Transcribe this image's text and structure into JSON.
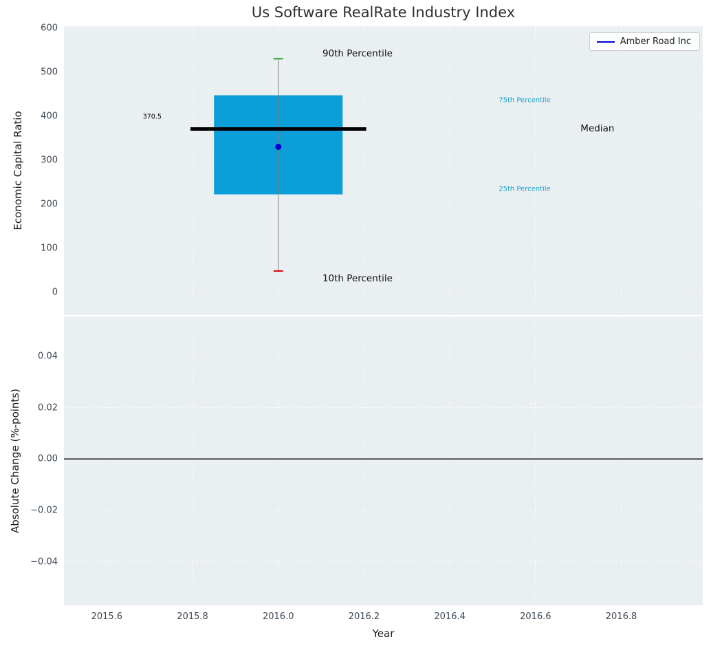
{
  "figure": {
    "background": "#ffffff",
    "axes_background": "#eaeff1",
    "grid_color": "#ffffff"
  },
  "legend": {
    "label": "Amber Road Inc",
    "line_color": "#0000cc"
  },
  "chart_data": [
    {
      "type": "boxplot",
      "title": "Us Software RealRate Industry Index",
      "ylabel": "Economic Capital Ratio",
      "xlim": [
        2015.5,
        2016.99
      ],
      "ylim": [
        -52,
        604
      ],
      "ytick_values": [
        0,
        100,
        200,
        300,
        400,
        500,
        600
      ],
      "ytick_labels": [
        "0",
        "100",
        "200",
        "300",
        "400",
        "500",
        "600"
      ],
      "xtick_values": [
        2015.6,
        2015.8,
        2016.0,
        2016.2,
        2016.4,
        2016.6,
        2016.8
      ],
      "grid": true,
      "legend_position": "upper right",
      "box": {
        "x": 2016.0,
        "p10": 48,
        "p25": 222,
        "median": 370.5,
        "p75": 447,
        "p90": 530,
        "company_value": 330,
        "box_halfwidth": 0.15,
        "median_halfwidth": 0.205,
        "cap_halfwidth": 0.011,
        "box_color": "#0b9ed9",
        "median_color": "#000000",
        "whisker_color": "#7f7f7f",
        "cap_top_color": "#2ca02c",
        "cap_bottom_color": "#e8000b",
        "point_color": "#0000cc"
      },
      "annotations": [
        {
          "text": "370.5",
          "x": 2015.684,
          "y": 398,
          "color": "#000000",
          "size": 9.5
        },
        {
          "text": "90th Percentile",
          "x": 2016.103,
          "y": 542,
          "color": "#111111",
          "size": 13.5
        },
        {
          "text": "10th Percentile",
          "x": 2016.103,
          "y": 31,
          "color": "#111111",
          "size": 13.5
        },
        {
          "text": "75th Percentile",
          "x": 2016.514,
          "y": 436,
          "color": "#14a0cd",
          "size": 10
        },
        {
          "text": "25th Percentile",
          "x": 2016.514,
          "y": 234,
          "color": "#14a0cd",
          "size": 10
        },
        {
          "text": "Median",
          "x": 2016.705,
          "y": 371,
          "color": "#111111",
          "size": 13.5
        }
      ]
    },
    {
      "type": "line",
      "ylabel": "Absolute Change (%-points)",
      "xlabel": "Year",
      "xlim": [
        2015.5,
        2016.99
      ],
      "ylim": [
        -0.057,
        0.0555
      ],
      "ytick_values": [
        -0.04,
        -0.02,
        0,
        0.02,
        0.04
      ],
      "ytick_labels": [
        "−0.04",
        "−0.02",
        "0.00",
        "0.02",
        "0.04"
      ],
      "xtick_values": [
        2015.6,
        2015.8,
        2016.0,
        2016.2,
        2016.4,
        2016.6,
        2016.8
      ],
      "xtick_labels": [
        "2015.6",
        "2015.8",
        "2016.0",
        "2016.2",
        "2016.4",
        "2016.6",
        "2016.8"
      ],
      "grid": true,
      "zero_line_y": 0.0
    }
  ]
}
